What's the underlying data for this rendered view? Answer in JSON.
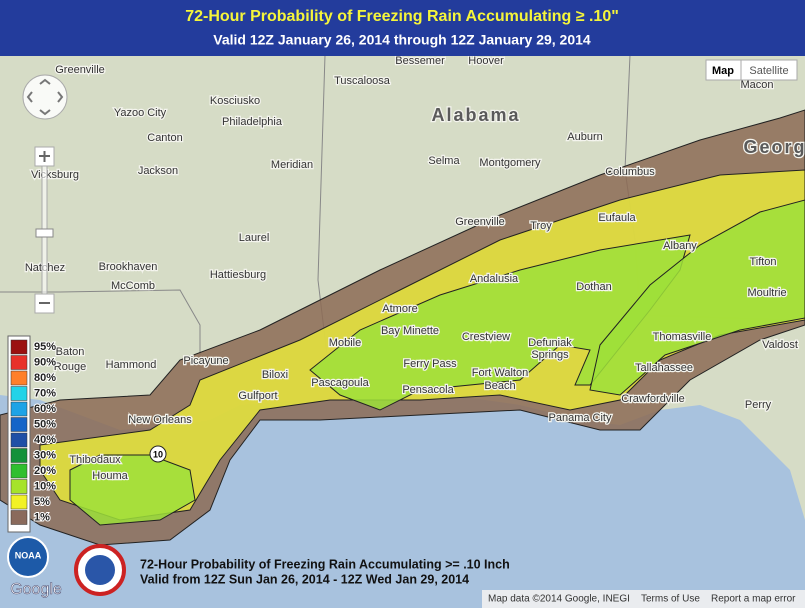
{
  "header": {
    "title": "72-Hour Probability of Freezing Rain Accumulating ≥ .10\"",
    "subtitle": "Valid 12Z January 26, 2014 through 12Z January 29, 2014"
  },
  "map_controls": {
    "map": "Map",
    "satellite": "Satellite"
  },
  "places": [
    "Greenville",
    "Yazoo City",
    "Kosciusko",
    "Philadelphia",
    "Canton",
    "Vicksburg",
    "Jackson",
    "Meridian",
    "Laurel",
    "Natchez",
    "Brookhaven",
    "McComb",
    "Hattiesburg",
    "Tuscaloosa",
    "Bessemer",
    "Hoover",
    "Alabama",
    "Selma",
    "Montgomery",
    "Auburn",
    "Columbus",
    "Macon",
    "Georg",
    "Eufaula",
    "Greenville",
    "Troy",
    "Albany",
    "Tifton",
    "Andalusia",
    "Dothan",
    "Moultrie",
    "Atmore",
    "Bay Minette",
    "Crestview",
    "Defuniak",
    "Springs",
    "Thomasville",
    "Valdost",
    "Mobile",
    "Ferry Pass",
    "Fort Walton",
    "Beach",
    "Tallahassee",
    "Baton",
    "Rouge",
    "Hammond",
    "Picayune",
    "Biloxi",
    "Pascagoula",
    "Pensacola",
    "Gulfport",
    "New Orleans",
    "Crawfordville",
    "Perry",
    "Panama City",
    "Thibodaux",
    "Houma"
  ],
  "route_shield": "10",
  "legend": [
    {
      "label": "95%",
      "color": "#9b1010"
    },
    {
      "label": "90%",
      "color": "#e8312a"
    },
    {
      "label": "80%",
      "color": "#ff7f2a"
    },
    {
      "label": "70%",
      "color": "#22d3e8"
    },
    {
      "label": "60%",
      "color": "#1ea3e6"
    },
    {
      "label": "50%",
      "color": "#1565c8"
    },
    {
      "label": "40%",
      "color": "#1f4fa6"
    },
    {
      "label": "30%",
      "color": "#13913a"
    },
    {
      "label": "20%",
      "color": "#2fbf2f"
    },
    {
      "label": "10%",
      "color": "#a6e32a"
    },
    {
      "label": "5%",
      "color": "#f2f226"
    },
    {
      "label": "1%",
      "color": "#8a6a5c"
    }
  ],
  "caption": {
    "line1": "72-Hour Probability of Freezing Rain Accumulating >= .10 Inch",
    "line2": "Valid from 12Z Sun Jan 26, 2014 - 12Z Wed Jan 29, 2014"
  },
  "logos": {
    "noaa": "NOAA",
    "google": "Google"
  },
  "footer": {
    "attribution": "Map data ©2014 Google, INEGI",
    "terms": "Terms of Use",
    "report": "Report a map error"
  }
}
